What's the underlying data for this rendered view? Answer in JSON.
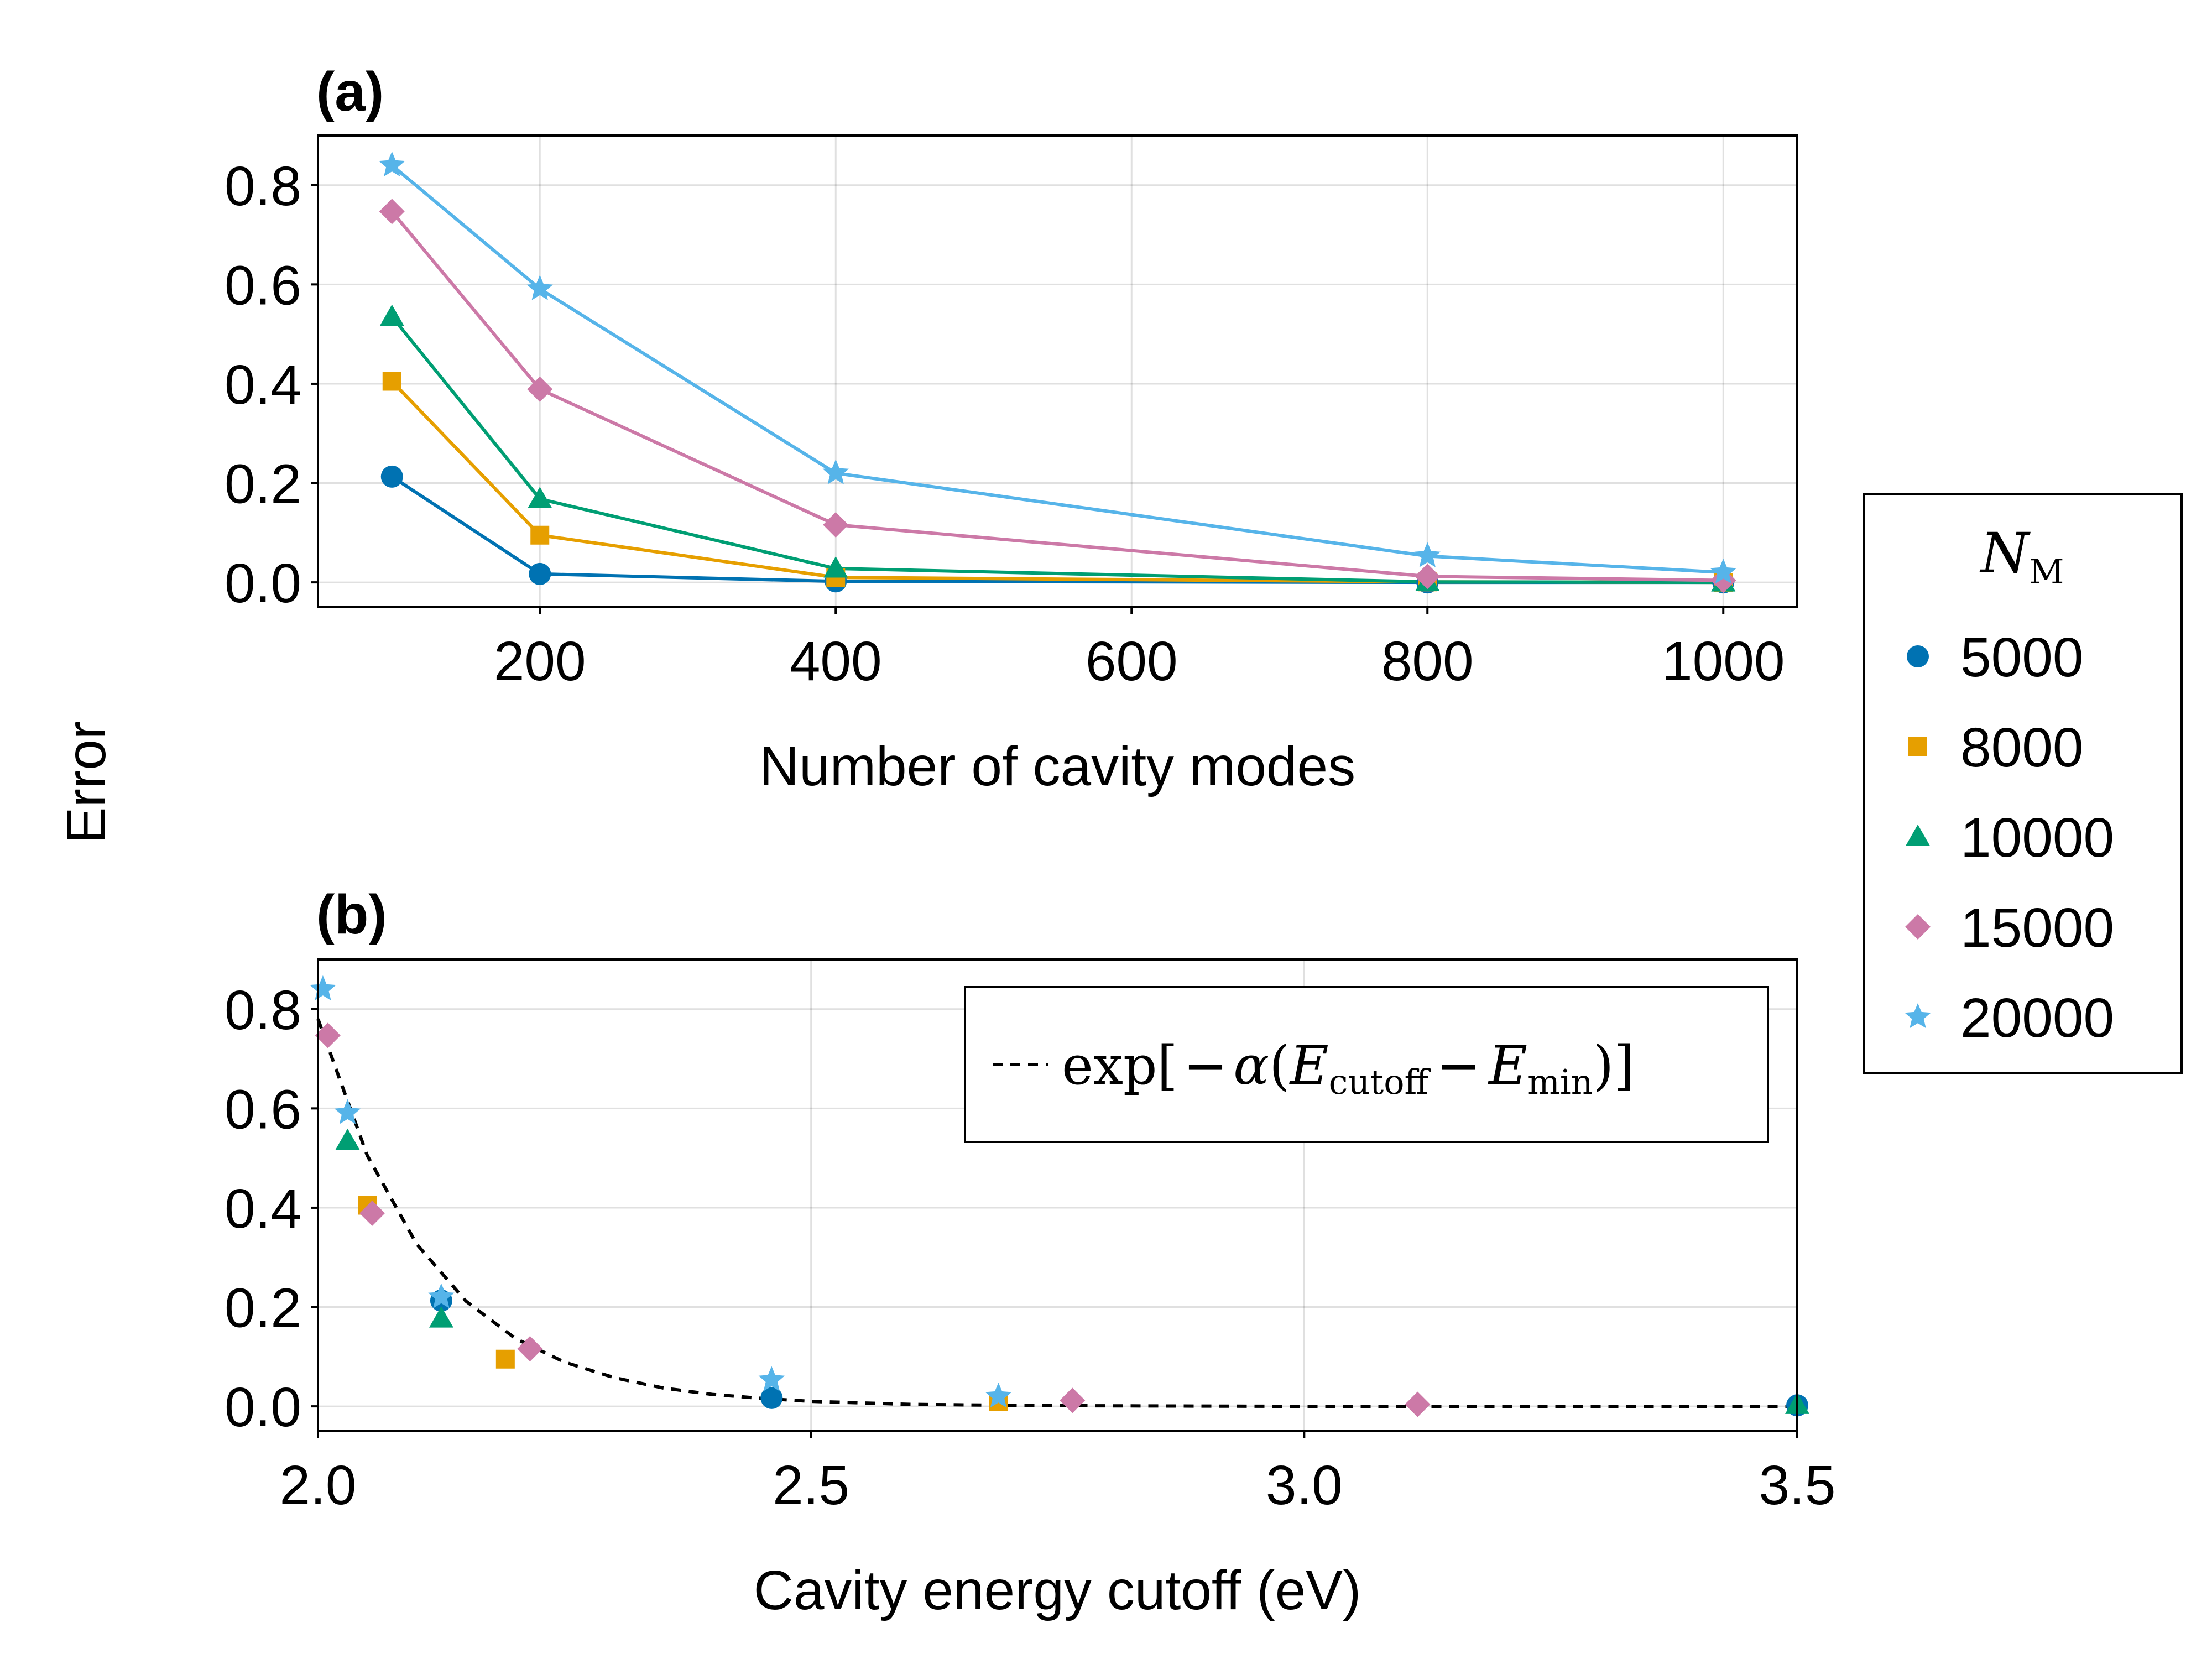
{
  "figure": {
    "shared_ylabel": "Error",
    "legend": {
      "title_base": "N",
      "title_sub": "M",
      "entries": [
        "5000",
        "8000",
        "10000",
        "15000",
        "20000"
      ],
      "placement": "right"
    },
    "colors": {
      "5000": "#0072B2",
      "8000": "#E69F00",
      "10000": "#009E73",
      "15000": "#CC79A7",
      "20000": "#56B4E9",
      "fit": "#000000"
    },
    "markers": {
      "5000": "circle",
      "8000": "square",
      "10000": "triangle",
      "15000": "diamond",
      "20000": "star"
    }
  },
  "chart_data": [
    {
      "type": "line",
      "panel_label": "(a)",
      "xlabel": "Number of cavity modes",
      "ylabel": "Error",
      "xlim": [
        50,
        1050
      ],
      "ylim": [
        -0.05,
        0.9
      ],
      "xticks": [
        "200",
        "400",
        "600",
        "800",
        "1000"
      ],
      "xtick_values": [
        200,
        400,
        600,
        800,
        1000
      ],
      "yticks": [
        "0.0",
        "0.2",
        "0.4",
        "0.6",
        "0.8"
      ],
      "ytick_values": [
        0.0,
        0.2,
        0.4,
        0.6,
        0.8
      ],
      "grid": true,
      "x": [
        100,
        200,
        400,
        800,
        1000
      ],
      "series": [
        {
          "name": "5000",
          "values": [
            0.213,
            0.017,
            0.002,
            0.0,
            0.0
          ]
        },
        {
          "name": "8000",
          "values": [
            0.405,
            0.095,
            0.01,
            0.001,
            0.0
          ]
        },
        {
          "name": "10000",
          "values": [
            0.535,
            0.168,
            0.028,
            0.001,
            0.0
          ]
        },
        {
          "name": "15000",
          "values": [
            0.747,
            0.389,
            0.116,
            0.012,
            0.004
          ]
        },
        {
          "name": "20000",
          "values": [
            0.84,
            0.591,
            0.22,
            0.053,
            0.02
          ]
        }
      ]
    },
    {
      "type": "scatter",
      "panel_label": "(b)",
      "xlabel": "Cavity energy cutoff (eV)",
      "ylabel": "Error",
      "xlim": [
        2.0,
        3.5
      ],
      "ylim": [
        -0.05,
        0.9
      ],
      "xticks": [
        "2.0",
        "2.5",
        "3.0",
        "3.5"
      ],
      "xtick_values": [
        2.0,
        2.5,
        3.0,
        3.5
      ],
      "yticks": [
        "0.0",
        "0.2",
        "0.4",
        "0.6",
        "0.8"
      ],
      "ytick_values": [
        0.0,
        0.2,
        0.4,
        0.6,
        0.8
      ],
      "grid": true,
      "series": [
        {
          "name": "5000",
          "x": [
            2.125,
            2.46,
            3.5
          ],
          "values": [
            0.213,
            0.017,
            0.002
          ]
        },
        {
          "name": "8000",
          "x": [
            2.05,
            2.19,
            2.69
          ],
          "values": [
            0.405,
            0.095,
            0.01
          ]
        },
        {
          "name": "10000",
          "x": [
            2.03,
            2.125,
            3.5
          ],
          "values": [
            0.535,
            0.177,
            0.003
          ]
        },
        {
          "name": "15000",
          "x": [
            2.01,
            2.055,
            2.215,
            2.765,
            3.115
          ],
          "values": [
            0.747,
            0.389,
            0.116,
            0.012,
            0.004
          ]
        },
        {
          "name": "20000",
          "x": [
            2.005,
            2.03,
            2.125,
            2.46,
            2.69
          ],
          "values": [
            0.84,
            0.591,
            0.22,
            0.053,
            0.02
          ]
        }
      ],
      "fit_curve": {
        "legend_parts": {
          "fn": "exp",
          "open": "[",
          "minus1": "−",
          "alpha": "α",
          "paren_open": "(",
          "e1": "E",
          "sub1": "cutoff",
          "minus2": "−",
          "e2": "E",
          "sub2": "min",
          "paren_close": ")",
          "close": "]"
        },
        "style": "dashed",
        "x": [
          2.0,
          2.05,
          2.1,
          2.15,
          2.2,
          2.25,
          2.3,
          2.35,
          2.4,
          2.45,
          2.5,
          2.6,
          2.7,
          2.8,
          3.0,
          3.2,
          3.5
        ],
        "values": [
          0.78,
          0.505,
          0.327,
          0.212,
          0.137,
          0.089,
          0.058,
          0.037,
          0.024,
          0.016,
          0.01,
          0.004,
          0.002,
          0.001,
          0.0,
          0.0,
          0.0
        ]
      },
      "fit_legend_placement": "top-right"
    }
  ]
}
